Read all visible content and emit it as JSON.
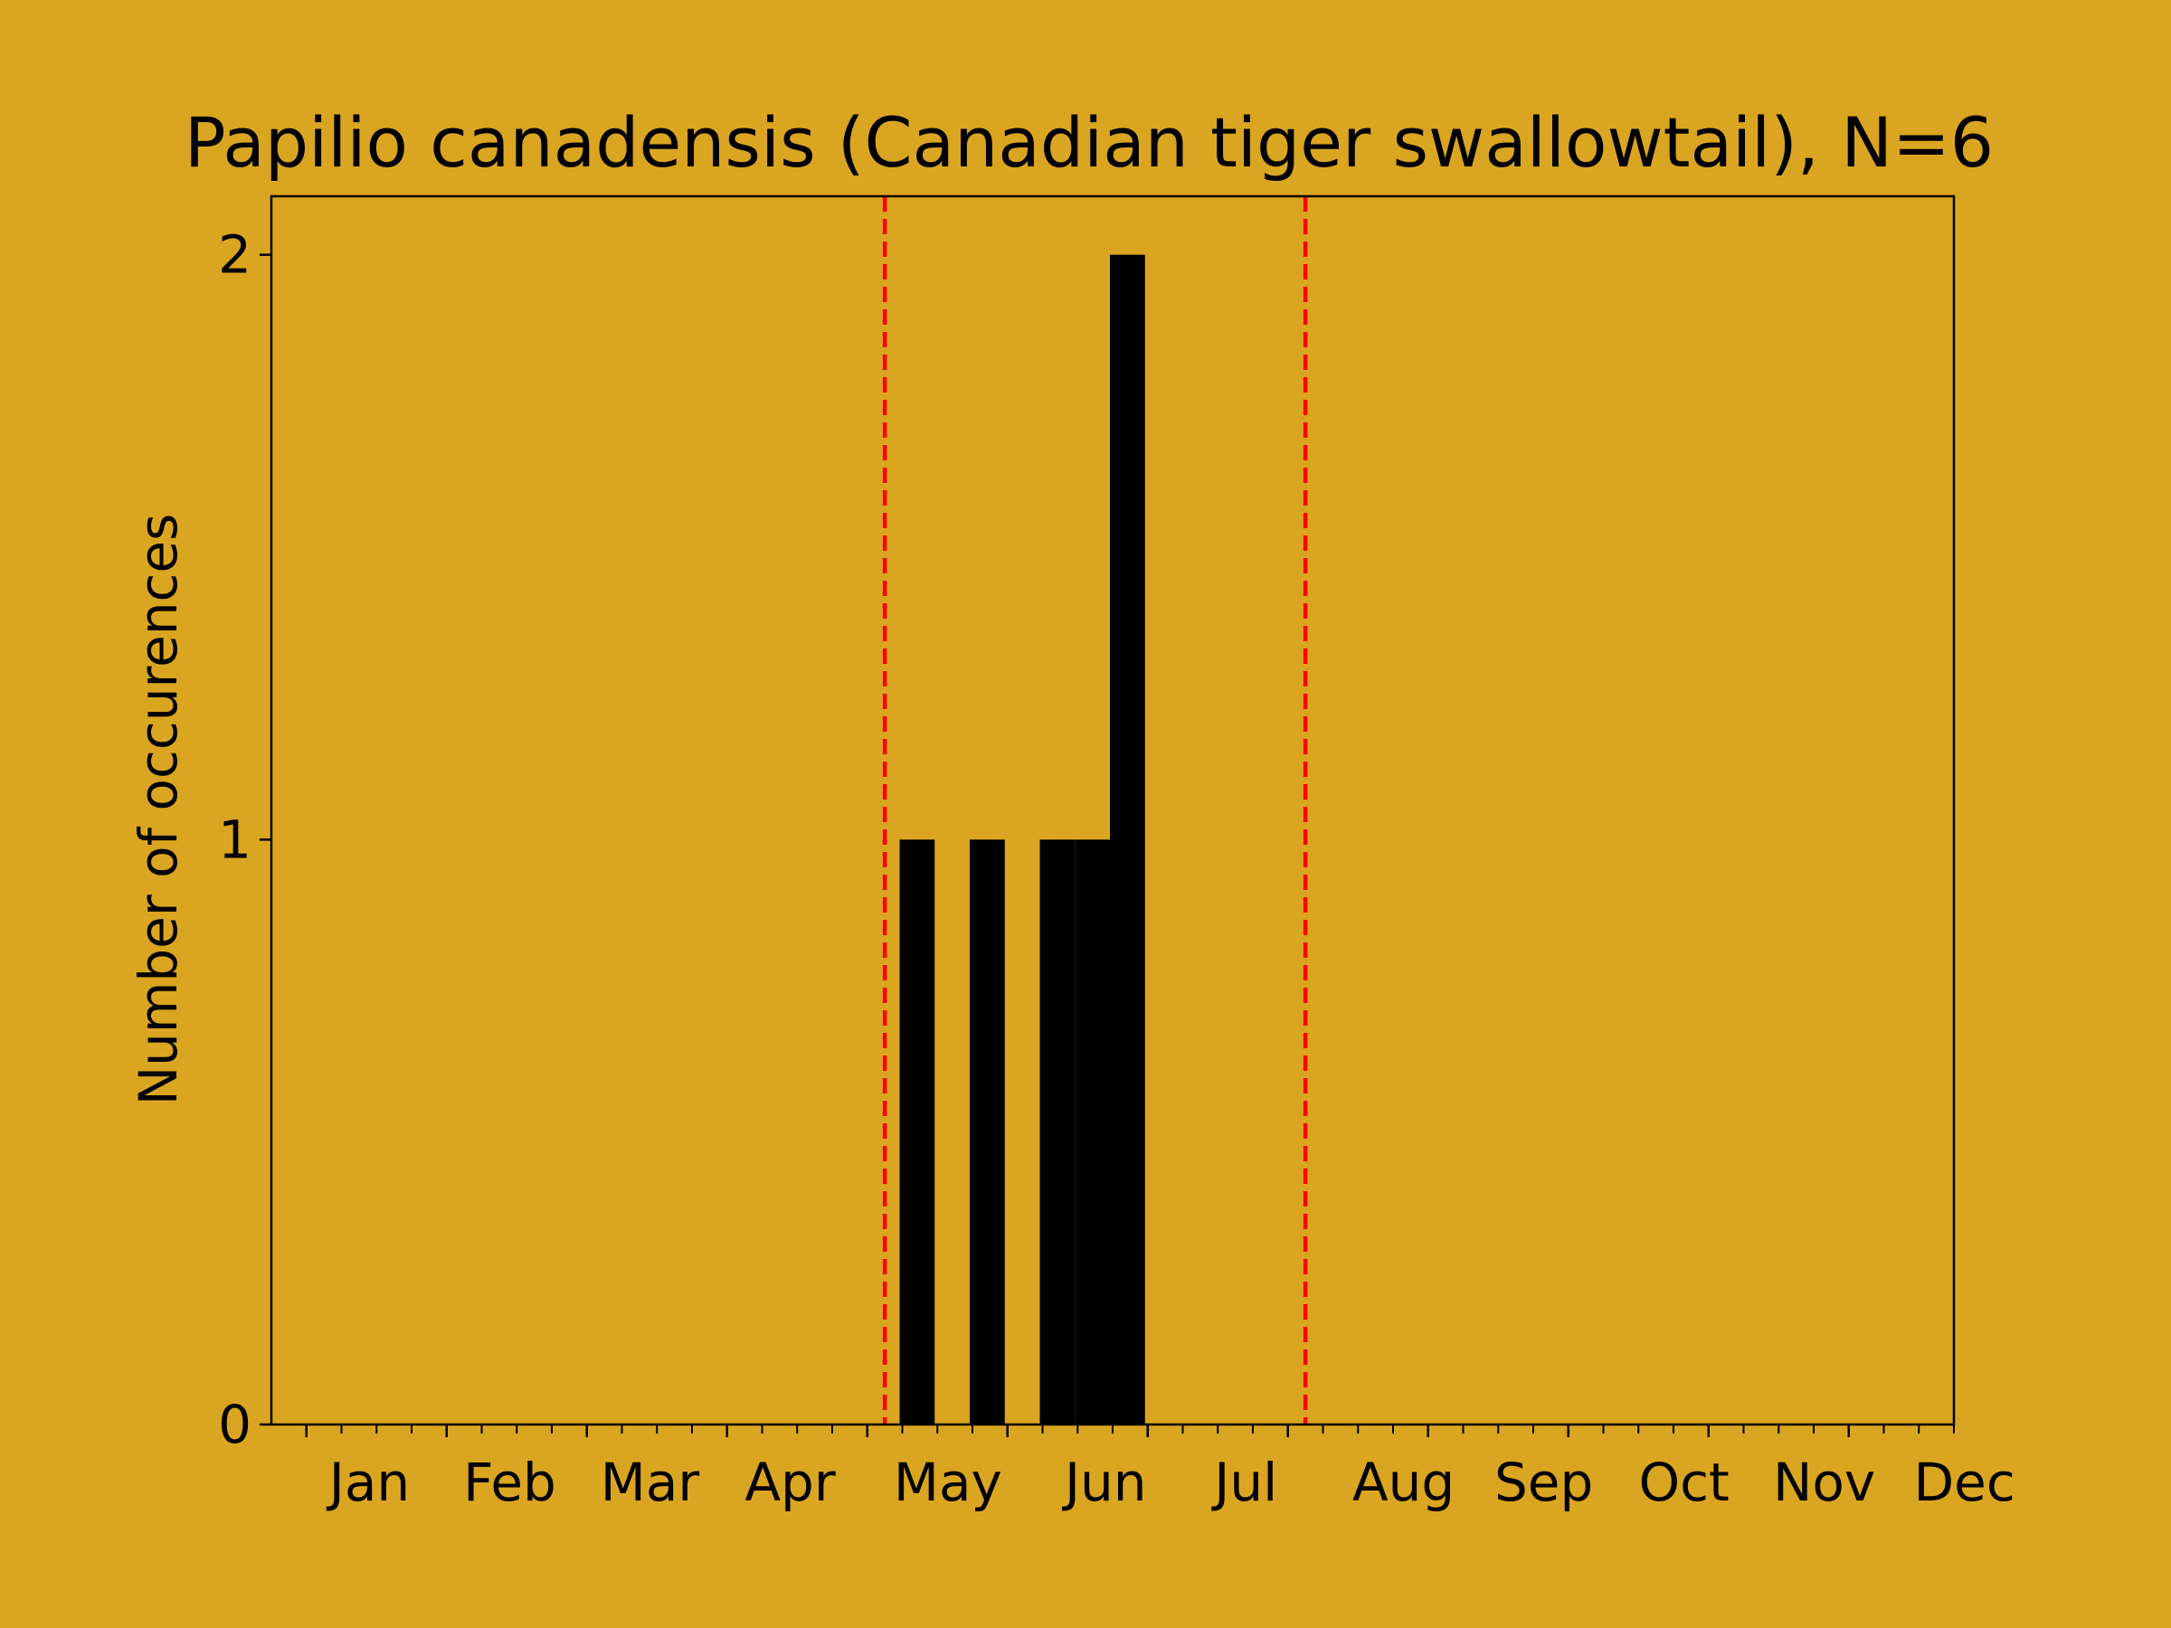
{
  "chart_data": {
    "type": "bar",
    "title": "Papilio canadensis (Canadian tiger swallowtail), N=6",
    "xlabel": "",
    "ylabel": "Number of occurences",
    "ylim": [
      0,
      2.1
    ],
    "yticks": [
      0,
      1,
      2
    ],
    "x_ticks": [
      {
        "label": "Jan",
        "week": 1
      },
      {
        "label": "Feb",
        "week": 5
      },
      {
        "label": "Mar",
        "week": 9
      },
      {
        "label": "Apr",
        "week": 13
      },
      {
        "label": "May",
        "week": 17.5
      },
      {
        "label": "Jun",
        "week": 22
      },
      {
        "label": "Jul",
        "week": 26
      },
      {
        "label": "Aug",
        "week": 30.5
      },
      {
        "label": "Sep",
        "week": 34.5
      },
      {
        "label": "Oct",
        "week": 38.5
      },
      {
        "label": "Nov",
        "week": 42.5
      },
      {
        "label": "Dec",
        "week": 46.5
      }
    ],
    "bars": [
      {
        "week": 18,
        "value": 1
      },
      {
        "week": 20,
        "value": 1
      },
      {
        "week": 22,
        "value": 1
      },
      {
        "week": 23,
        "value": 1
      },
      {
        "week": 24,
        "value": 2
      }
    ],
    "reference_lines": [
      {
        "week": 17.5,
        "style": "dashed"
      },
      {
        "week": 29.5,
        "style": "dashed"
      }
    ],
    "colors": {
      "background": "#DAA520",
      "bars": "#000000",
      "reference_lines": "#FF0000"
    },
    "grid": false,
    "legend": "none"
  }
}
